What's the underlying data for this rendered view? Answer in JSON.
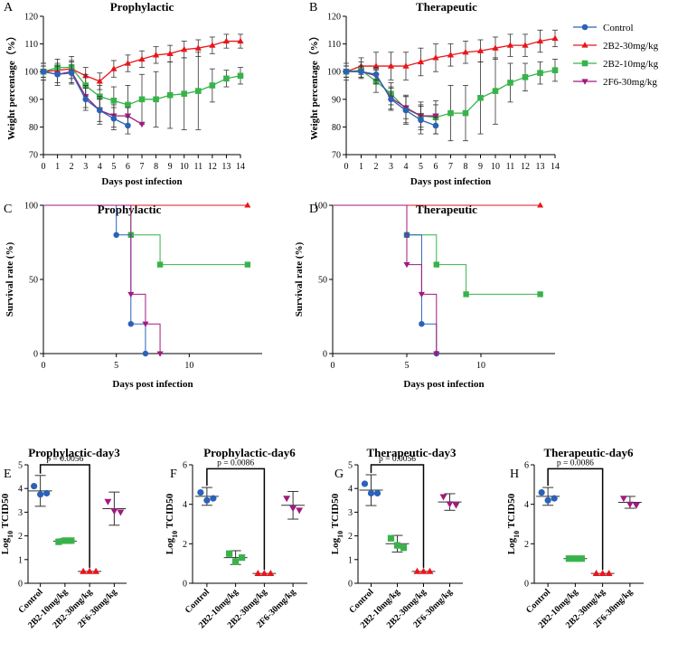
{
  "colors": {
    "control": "#2a62b8",
    "r30": "#e8161b",
    "g10": "#37b34a",
    "f6": "#a11a7e",
    "axis": "#000000",
    "err": "#444444"
  },
  "legend": [
    {
      "key": "control",
      "label": "Control",
      "marker": "circle"
    },
    {
      "key": "r30",
      "label": "2B2-30mg/kg",
      "marker": "triangle"
    },
    {
      "key": "g10",
      "label": "2B2-10mg/kg",
      "marker": "square"
    },
    {
      "key": "f6",
      "label": "2F6-30mg/kg",
      "marker": "triangle-down"
    }
  ],
  "chart_data": [
    {
      "id": "A",
      "type": "line",
      "title": "Prophylactic",
      "xlabel": "Days post infection",
      "ylabel": "Weight percentage（%）",
      "xlim": [
        0,
        14
      ],
      "ylim": [
        70,
        120
      ],
      "xticks": [
        0,
        1,
        2,
        3,
        4,
        5,
        6,
        7,
        8,
        9,
        10,
        11,
        12,
        13,
        14
      ],
      "yticks": [
        70,
        80,
        90,
        100,
        110,
        120
      ],
      "series": [
        {
          "key": "r30",
          "name": "2B2-30mg/kg",
          "x": [
            0,
            1,
            2,
            3,
            4,
            5,
            6,
            7,
            8,
            9,
            10,
            11,
            12,
            13,
            14
          ],
          "values": [
            100,
            100.5,
            101,
            98.5,
            96.5,
            101,
            103,
            104.5,
            106,
            106.5,
            108,
            108.5,
            109.5,
            111,
            111
          ],
          "err": [
            2,
            1.5,
            1.5,
            3,
            3,
            3,
            3,
            3,
            3,
            3,
            3,
            3,
            3,
            2.5,
            2.5
          ]
        },
        {
          "key": "g10",
          "name": "2B2-10mg/kg",
          "x": [
            0,
            1,
            2,
            3,
            4,
            5,
            6,
            7,
            8,
            9,
            10,
            11,
            12,
            13,
            14
          ],
          "values": [
            100,
            101.5,
            101.5,
            95,
            91,
            89.5,
            88,
            90,
            90,
            91.5,
            92,
            93,
            95,
            97.5,
            98.5
          ],
          "err": [
            3,
            3,
            4,
            4,
            4,
            5,
            7,
            9,
            10,
            12,
            13,
            14,
            6,
            3,
            3
          ]
        },
        {
          "key": "f6",
          "name": "2F6-30mg/kg",
          "x": [
            0,
            1,
            2,
            3,
            4,
            5,
            6,
            7
          ],
          "values": [
            100,
            99,
            100,
            91,
            86,
            84,
            84,
            81
          ],
          "err": [
            2,
            3,
            4,
            4,
            4,
            4,
            3,
            0
          ]
        },
        {
          "key": "control",
          "name": "Control",
          "x": [
            0,
            1,
            2,
            3,
            4,
            5,
            6
          ],
          "values": [
            100,
            99,
            99.5,
            90,
            86,
            83,
            80.5
          ],
          "err": [
            3,
            4,
            4,
            4,
            5,
            4,
            3
          ]
        }
      ]
    },
    {
      "id": "B",
      "type": "line",
      "title": "Therapeutic",
      "xlabel": "Days post infection",
      "ylabel": "Weight percentage（%）",
      "xlim": [
        0,
        14
      ],
      "ylim": [
        70,
        120
      ],
      "xticks": [
        0,
        1,
        2,
        3,
        4,
        5,
        6,
        7,
        8,
        9,
        10,
        11,
        12,
        13,
        14
      ],
      "yticks": [
        70,
        80,
        90,
        100,
        110,
        120
      ],
      "series": [
        {
          "key": "r30",
          "name": "2B2-30mg/kg",
          "x": [
            0,
            1,
            2,
            3,
            4,
            5,
            6,
            7,
            8,
            9,
            10,
            11,
            12,
            13,
            14
          ],
          "values": [
            100,
            102,
            102,
            102,
            102,
            103.5,
            105,
            106,
            107,
            107.5,
            108.5,
            109.5,
            109.5,
            111,
            112
          ],
          "err": [
            2,
            3,
            5,
            5,
            5,
            5,
            5,
            4,
            4,
            4,
            4,
            4,
            4,
            4,
            3
          ]
        },
        {
          "key": "g10",
          "name": "2B2-10mg/kg",
          "x": [
            0,
            1,
            2,
            3,
            4,
            5,
            6,
            7,
            8,
            9,
            10,
            11,
            12,
            13,
            14
          ],
          "values": [
            100,
            100.5,
            96.5,
            92,
            86.5,
            84,
            83.5,
            85,
            85,
            90.5,
            93,
            96,
            98,
            99.5,
            100.5
          ],
          "err": [
            3,
            3,
            4,
            4,
            5,
            5,
            6,
            10,
            10,
            13,
            12,
            7,
            5,
            4,
            4
          ]
        },
        {
          "key": "f6",
          "name": "2F6-30mg/kg",
          "x": [
            0,
            1,
            2,
            3,
            4,
            5,
            6
          ],
          "values": [
            100,
            100,
            98.5,
            90.5,
            87,
            84,
            84
          ],
          "err": [
            2,
            2,
            3,
            4,
            4,
            4,
            4
          ]
        },
        {
          "key": "control",
          "name": "Control",
          "x": [
            0,
            1,
            2,
            3,
            4,
            5,
            6
          ],
          "values": [
            100,
            100,
            99,
            90,
            86,
            82.5,
            80.5
          ],
          "err": [
            2,
            2,
            2,
            4,
            5,
            5,
            3
          ]
        }
      ]
    },
    {
      "id": "C",
      "type": "line",
      "subtype": "step",
      "title": "Prophylactic",
      "xlabel": "Days post infection",
      "ylabel": "Survival rate (%)",
      "xlim": [
        0,
        15
      ],
      "ylim": [
        0,
        100
      ],
      "xticks": [
        0,
        5,
        10
      ],
      "yticks": [
        0,
        50,
        100
      ],
      "series": [
        {
          "key": "r30",
          "name": "2B2-30mg/kg",
          "steps": [
            [
              0,
              100
            ],
            [
              14,
              100
            ]
          ],
          "markers": [
            [
              14,
              100
            ]
          ]
        },
        {
          "key": "g10",
          "name": "2B2-10mg/kg",
          "steps": [
            [
              0,
              100
            ],
            [
              6,
              100
            ],
            [
              6,
              80
            ],
            [
              8,
              80
            ],
            [
              8,
              60
            ],
            [
              14,
              60
            ]
          ],
          "markers": [
            [
              6,
              80
            ],
            [
              8,
              60
            ],
            [
              14,
              60
            ]
          ]
        },
        {
          "key": "control",
          "name": "Control",
          "steps": [
            [
              0,
              100
            ],
            [
              5,
              100
            ],
            [
              5,
              80
            ],
            [
              6,
              80
            ],
            [
              6,
              20
            ],
            [
              7,
              20
            ],
            [
              7,
              0
            ]
          ],
          "markers": [
            [
              5,
              80
            ],
            [
              6,
              20
            ],
            [
              7,
              0
            ]
          ]
        },
        {
          "key": "f6",
          "name": "2F6-30mg/kg",
          "steps": [
            [
              0,
              100
            ],
            [
              6,
              100
            ],
            [
              6,
              40
            ],
            [
              7,
              40
            ],
            [
              7,
              20
            ],
            [
              8,
              20
            ],
            [
              8,
              0
            ]
          ],
          "markers": [
            [
              6,
              40
            ],
            [
              7,
              20
            ],
            [
              8,
              0
            ]
          ]
        }
      ]
    },
    {
      "id": "D",
      "type": "line",
      "subtype": "step",
      "title": "Therapeutic",
      "xlabel": "Days post infection",
      "ylabel": "Survival rate (%)",
      "xlim": [
        0,
        15
      ],
      "ylim": [
        0,
        100
      ],
      "xticks": [
        0,
        5,
        10
      ],
      "yticks": [
        0,
        50,
        100
      ],
      "series": [
        {
          "key": "r30",
          "name": "2B2-30mg/kg",
          "steps": [
            [
              0,
              100
            ],
            [
              14,
              100
            ]
          ],
          "markers": [
            [
              14,
              100
            ]
          ]
        },
        {
          "key": "g10",
          "name": "2B2-10mg/kg",
          "steps": [
            [
              0,
              100
            ],
            [
              5,
              100
            ],
            [
              5,
              80
            ],
            [
              7,
              80
            ],
            [
              7,
              60
            ],
            [
              9,
              60
            ],
            [
              9,
              40
            ],
            [
              14,
              40
            ]
          ],
          "markers": [
            [
              5,
              80
            ],
            [
              7,
              60
            ],
            [
              9,
              40
            ],
            [
              14,
              40
            ]
          ]
        },
        {
          "key": "control",
          "name": "Control",
          "steps": [
            [
              0,
              100
            ],
            [
              5,
              100
            ],
            [
              5,
              80
            ],
            [
              6,
              80
            ],
            [
              6,
              20
            ],
            [
              7,
              20
            ],
            [
              7,
              0
            ]
          ],
          "markers": [
            [
              5,
              80
            ],
            [
              6,
              20
            ],
            [
              7,
              0
            ]
          ]
        },
        {
          "key": "f6",
          "name": "2F6-30mg/kg",
          "steps": [
            [
              0,
              100
            ],
            [
              5,
              100
            ],
            [
              5,
              60
            ],
            [
              6,
              60
            ],
            [
              6,
              40
            ],
            [
              7,
              40
            ],
            [
              7,
              0
            ]
          ],
          "markers": [
            [
              5,
              60
            ],
            [
              6,
              40
            ],
            [
              7,
              0
            ]
          ]
        }
      ]
    },
    {
      "id": "E",
      "type": "scatter",
      "title": "Prophylactic-day3",
      "ylabel": "Log10 TCID50",
      "ylim": [
        0,
        5
      ],
      "yticks": [
        0,
        1,
        2,
        3,
        4,
        5
      ],
      "categories": [
        "Control",
        "2B2-10mg/kg",
        "2B2-30mg/kg",
        "2F6-30mg/kg"
      ],
      "keys": [
        "control",
        "g10",
        "r30",
        "f6"
      ],
      "points": [
        [
          4.1,
          3.75,
          3.8
        ],
        [
          1.75,
          1.8,
          1.8
        ],
        [
          0.5,
          0.5,
          0.5
        ],
        [
          3.45,
          3.05,
          3.0
        ]
      ],
      "mean": [
        3.9,
        1.78,
        0.5,
        3.15
      ],
      "err": [
        0.65,
        0.1,
        0,
        0.7
      ],
      "annotation": "p = 0.0056",
      "bracket": [
        0,
        2
      ],
      "bracket_y": 5.0
    },
    {
      "id": "F",
      "type": "scatter",
      "title": "Prophylactic-day6",
      "ylabel": "Log10 TCID50",
      "ylim": [
        0,
        6
      ],
      "yticks": [
        0,
        2,
        4,
        6
      ],
      "categories": [
        "Control",
        "2B2-10mg/kg",
        "2B2-30mg/kg",
        "2F6-30mg/kg"
      ],
      "keys": [
        "control",
        "g10",
        "r30",
        "f6"
      ],
      "points": [
        [
          4.6,
          4.2,
          4.3
        ],
        [
          1.5,
          1.1,
          1.3
        ],
        [
          0.5,
          0.5,
          0.5
        ],
        [
          4.3,
          3.8,
          3.7
        ]
      ],
      "mean": [
        4.4,
        1.3,
        0.5,
        3.95
      ],
      "err": [
        0.45,
        0.35,
        0,
        0.7
      ],
      "annotation": "p = 0.0086",
      "bracket": [
        0,
        2
      ],
      "bracket_y": 5.8
    },
    {
      "id": "G",
      "type": "scatter",
      "title": "Therapeutic-day3",
      "ylabel": "Log10 TCID50",
      "ylim": [
        0,
        5
      ],
      "yticks": [
        0,
        1,
        2,
        3,
        4,
        5
      ],
      "categories": [
        "Control",
        "2B2-10mg/kg",
        "2B2-30mg/kg",
        "2F6-30mg/kg"
      ],
      "keys": [
        "control",
        "g10",
        "r30",
        "f6"
      ],
      "points": [
        [
          4.2,
          3.8,
          3.8
        ],
        [
          1.9,
          1.6,
          1.5
        ],
        [
          0.5,
          0.5,
          0.5
        ],
        [
          3.65,
          3.35,
          3.3
        ]
      ],
      "mean": [
        3.93,
        1.67,
        0.5,
        3.43
      ],
      "err": [
        0.65,
        0.35,
        0,
        0.35
      ],
      "annotation": "p = 0.0056",
      "bracket": [
        0,
        2
      ],
      "bracket_y": 5.0
    },
    {
      "id": "H",
      "type": "scatter",
      "title": "Therapeutic-day6",
      "ylabel": "Log10 TCID50",
      "ylim": [
        0,
        6
      ],
      "yticks": [
        0,
        2,
        4,
        6
      ],
      "categories": [
        "Control",
        "2B2-10mg/kg",
        "2B2-30mg/kg",
        "2F6-30mg/kg"
      ],
      "keys": [
        "control",
        "g10",
        "r30",
        "f6"
      ],
      "points": [
        [
          4.6,
          4.2,
          4.3
        ],
        [
          1.25,
          1.25,
          1.25
        ],
        [
          0.5,
          0.5,
          0.5
        ],
        [
          4.3,
          4.0,
          3.95
        ]
      ],
      "mean": [
        4.4,
        1.25,
        0.5,
        4.1
      ],
      "err": [
        0.45,
        0,
        0,
        0.3
      ],
      "annotation": "p = 0.0086",
      "bracket": [
        0,
        2
      ],
      "bracket_y": 5.8
    }
  ]
}
